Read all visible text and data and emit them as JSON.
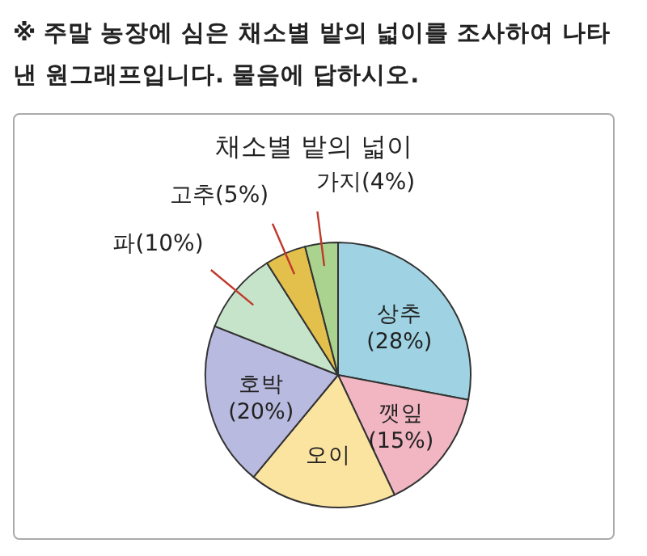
{
  "chart_data": {
    "type": "pie",
    "title": "채소별 밭의 넓이",
    "annotations": [
      "※ 주말 농장에 심은 채소별 밭의 넓이를 조사하여 나타낸 원그래프입니다. 물음에 답하시오."
    ],
    "categories": [
      "상추",
      "깻잎",
      "오이",
      "호박",
      "파",
      "고추",
      "가지"
    ],
    "values": [
      28,
      15,
      18,
      20,
      10,
      5,
      4
    ],
    "value_labels": [
      "(28%)",
      "(15%)",
      null,
      "(20%)",
      "(10%)",
      "(5%)",
      "(4%)"
    ],
    "colors": [
      "#9fd3e3",
      "#f2b6c2",
      "#fbe3a0",
      "#b9badf",
      "#c6e4c9",
      "#e3bf4c",
      "#a9d38e"
    ]
  }
}
